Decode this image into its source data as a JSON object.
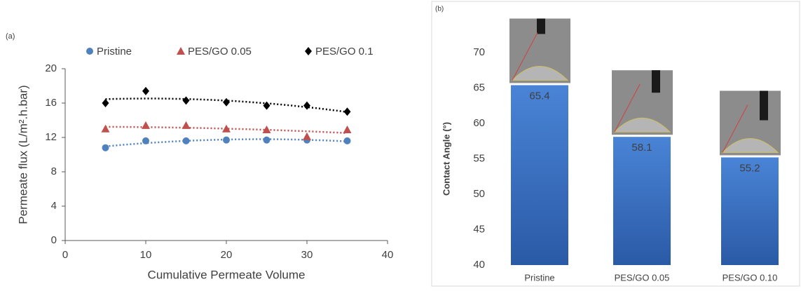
{
  "chart_data": [
    {
      "type": "scatter",
      "panel": "(a)",
      "x_label": "Cumulative Permeate Volume",
      "y_label": "Permeate flux (L/m².h.bar)",
      "x": [
        5,
        10,
        15,
        20,
        25,
        30,
        35
      ],
      "series": [
        {
          "name": "Pristine",
          "color": "#4f81bd",
          "marker": "circle",
          "values": [
            10.8,
            11.6,
            11.6,
            11.7,
            11.7,
            11.7,
            11.6
          ]
        },
        {
          "name": "PES/GO 0.05",
          "color": "#c0504d",
          "marker": "triangle",
          "values": [
            13.0,
            13.4,
            13.4,
            13.0,
            12.9,
            12.1,
            12.9
          ]
        },
        {
          "name": "PES/GO 0.1",
          "color": "#000000",
          "marker": "diamond",
          "values": [
            16.0,
            17.4,
            16.3,
            16.1,
            15.7,
            15.7,
            15.0
          ]
        }
      ],
      "trendline": true,
      "legend": "top",
      "xlim": [
        0,
        40
      ],
      "xticks": [
        0,
        10,
        20,
        30,
        40
      ],
      "ylim": [
        0,
        20
      ],
      "yticks": [
        0,
        4,
        8,
        12,
        16,
        20
      ]
    },
    {
      "type": "bar",
      "panel": "(b)",
      "y_label": "Contact Angle (°)",
      "categories": [
        "Pristine",
        "PES/GO 0.05",
        "PES/GO 0.10"
      ],
      "values": [
        65.4,
        58.1,
        55.2
      ],
      "color": "#3a6fc4",
      "ylim": [
        40,
        70
      ],
      "yticks": [
        40,
        45,
        50,
        55,
        60,
        65,
        70
      ]
    }
  ]
}
